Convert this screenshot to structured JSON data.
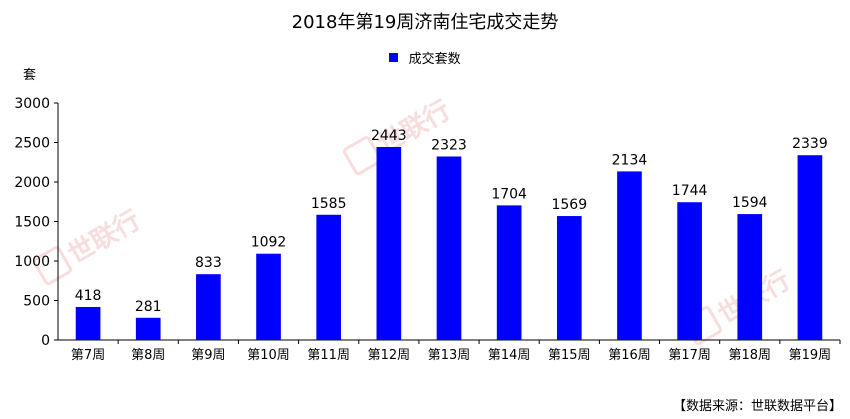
{
  "colors": {
    "bar": "#0000ff",
    "axis": "#000000",
    "watermark": "#f2c2c2"
  },
  "watermark": {
    "brand": "世联行"
  },
  "chart_data": {
    "type": "bar",
    "title": "2018年第19周济南住宅成交走势",
    "ylabel": "套",
    "xlabel": "",
    "ylim": [
      0,
      3000
    ],
    "yticks": [
      0,
      500,
      1000,
      1500,
      2000,
      2500,
      3000
    ],
    "grid": false,
    "legend_position": "top",
    "categories": [
      "第7周",
      "第8周",
      "第9周",
      "第10周",
      "第11周",
      "第12周",
      "第13周",
      "第14周",
      "第15周",
      "第16周",
      "第17周",
      "第18周",
      "第19周"
    ],
    "series": [
      {
        "name": "成交套数",
        "values": [
          418,
          281,
          833,
          1092,
          1585,
          2443,
          2323,
          1704,
          1569,
          2134,
          1744,
          1594,
          2339
        ]
      }
    ]
  },
  "source": "【数据来源：世联数据平台】"
}
